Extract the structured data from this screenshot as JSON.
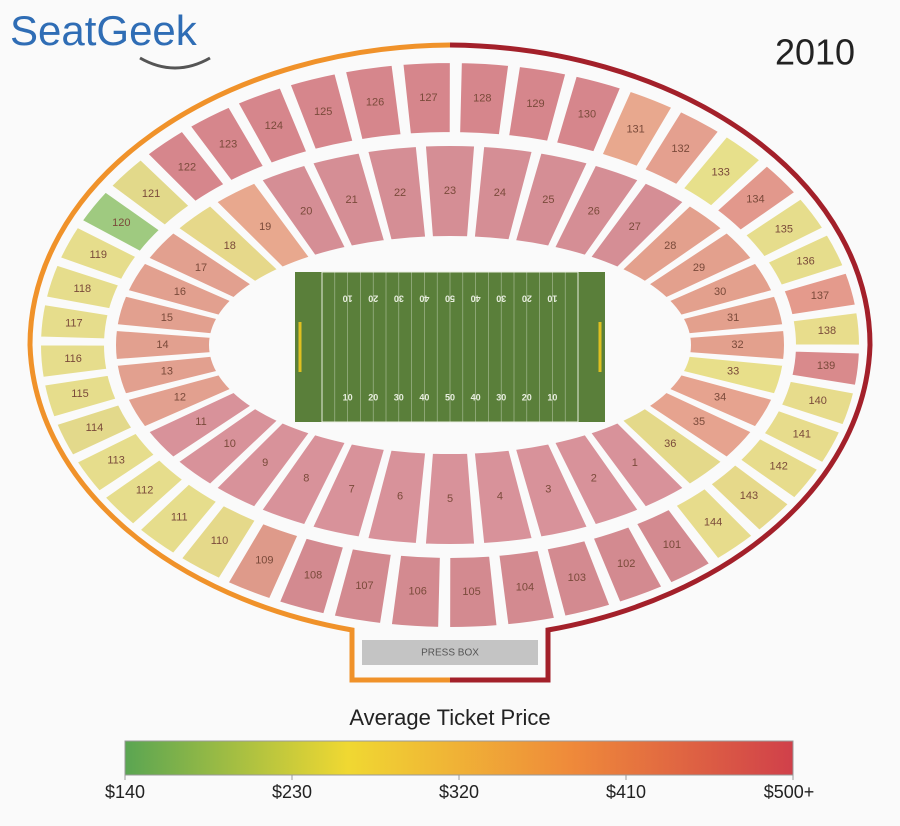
{
  "header": {
    "logo": "SeatGeek",
    "year": "2010"
  },
  "press_box": "PRESS BOX",
  "field": {
    "color": "#5a7f3a",
    "yard_numbers": [
      "10",
      "20",
      "30",
      "40",
      "50",
      "40",
      "30",
      "20",
      "10"
    ]
  },
  "inner_sections": [
    {
      "label": "1",
      "color": "#d8929a"
    },
    {
      "label": "2",
      "color": "#d8929a"
    },
    {
      "label": "3",
      "color": "#d8929a"
    },
    {
      "label": "4",
      "color": "#d8929a"
    },
    {
      "label": "5",
      "color": "#d8929a"
    },
    {
      "label": "6",
      "color": "#d8929a"
    },
    {
      "label": "7",
      "color": "#d8929a"
    },
    {
      "label": "8",
      "color": "#d8929a"
    },
    {
      "label": "9",
      "color": "#d8929a"
    },
    {
      "label": "10",
      "color": "#d8929a"
    },
    {
      "label": "11",
      "color": "#d8929a"
    },
    {
      "label": "12",
      "color": "#e2a08f"
    },
    {
      "label": "13",
      "color": "#e2a08f"
    },
    {
      "label": "14",
      "color": "#e2a08f"
    },
    {
      "label": "15",
      "color": "#e2a08f"
    },
    {
      "label": "16",
      "color": "#e2a08f"
    },
    {
      "label": "17",
      "color": "#e2a08f"
    },
    {
      "label": "18",
      "color": "#e6d88a"
    },
    {
      "label": "19",
      "color": "#e8a88e"
    },
    {
      "label": "20",
      "color": "#d58e95"
    },
    {
      "label": "21",
      "color": "#d58e95"
    },
    {
      "label": "22",
      "color": "#d58e95"
    },
    {
      "label": "23",
      "color": "#d58e95"
    },
    {
      "label": "24",
      "color": "#d58e95"
    },
    {
      "label": "25",
      "color": "#d58e95"
    },
    {
      "label": "26",
      "color": "#d58e95"
    },
    {
      "label": "27",
      "color": "#d58e95"
    },
    {
      "label": "28",
      "color": "#e3a08d"
    },
    {
      "label": "29",
      "color": "#e3a08d"
    },
    {
      "label": "30",
      "color": "#e3a08d"
    },
    {
      "label": "31",
      "color": "#e3a08d"
    },
    {
      "label": "32",
      "color": "#e3a08d"
    },
    {
      "label": "33",
      "color": "#e8df8a"
    },
    {
      "label": "34",
      "color": "#e6a38f"
    },
    {
      "label": "35",
      "color": "#e6a38f"
    },
    {
      "label": "36",
      "color": "#e4d98a"
    }
  ],
  "outer_sections": [
    {
      "label": "101",
      "color": "#d38a90"
    },
    {
      "label": "102",
      "color": "#d38a90"
    },
    {
      "label": "103",
      "color": "#d38a90"
    },
    {
      "label": "104",
      "color": "#d38a90"
    },
    {
      "label": "105",
      "color": "#d38a90"
    },
    {
      "label": "106",
      "color": "#d38a90"
    },
    {
      "label": "107",
      "color": "#d38a90"
    },
    {
      "label": "108",
      "color": "#d38a90"
    },
    {
      "label": "109",
      "color": "#de9a8a"
    },
    {
      "label": "110",
      "color": "#e5d98a"
    },
    {
      "label": "111",
      "color": "#e6dd8c"
    },
    {
      "label": "112",
      "color": "#e6dd8c"
    },
    {
      "label": "113",
      "color": "#e6dd8c"
    },
    {
      "label": "114",
      "color": "#e3d98b"
    },
    {
      "label": "115",
      "color": "#e6dd8c"
    },
    {
      "label": "116",
      "color": "#e6dd8c"
    },
    {
      "label": "117",
      "color": "#e6dd8c"
    },
    {
      "label": "118",
      "color": "#e6dd8c"
    },
    {
      "label": "119",
      "color": "#e6dd8c"
    },
    {
      "label": "120",
      "color": "#9fca80"
    },
    {
      "label": "121",
      "color": "#e2d98a"
    },
    {
      "label": "122",
      "color": "#d6868c"
    },
    {
      "label": "123",
      "color": "#d6868c"
    },
    {
      "label": "124",
      "color": "#d6868c"
    },
    {
      "label": "125",
      "color": "#d6868c"
    },
    {
      "label": "126",
      "color": "#d6868c"
    },
    {
      "label": "127",
      "color": "#d6868c"
    },
    {
      "label": "128",
      "color": "#d6868c"
    },
    {
      "label": "129",
      "color": "#d6868c"
    },
    {
      "label": "130",
      "color": "#d6868c"
    },
    {
      "label": "131",
      "color": "#e8a88e"
    },
    {
      "label": "132",
      "color": "#e4a08f"
    },
    {
      "label": "133",
      "color": "#e7e08b"
    },
    {
      "label": "134",
      "color": "#e2988c"
    },
    {
      "label": "135",
      "color": "#e6dd8c"
    },
    {
      "label": "136",
      "color": "#e6dd8c"
    },
    {
      "label": "137",
      "color": "#e49a8c"
    },
    {
      "label": "138",
      "color": "#e8dd8c"
    },
    {
      "label": "139",
      "color": "#d98a8c"
    },
    {
      "label": "140",
      "color": "#e7dc8c"
    },
    {
      "label": "141",
      "color": "#e7dc8c"
    },
    {
      "label": "142",
      "color": "#e7dc8c"
    },
    {
      "label": "143",
      "color": "#e6d98a"
    },
    {
      "label": "144",
      "color": "#e7dc8c"
    }
  ],
  "legend": {
    "title": "Average Ticket Price",
    "colors": [
      "#5aa552",
      "#f0d832",
      "#ef8a3a",
      "#d0404a"
    ],
    "ticks": [
      {
        "value": 140,
        "label": "$140"
      },
      {
        "value": 230,
        "label": "$230"
      },
      {
        "value": 320,
        "label": "$320"
      },
      {
        "value": 410,
        "label": "$410"
      },
      {
        "value": 500,
        "label": "$500+"
      }
    ]
  }
}
